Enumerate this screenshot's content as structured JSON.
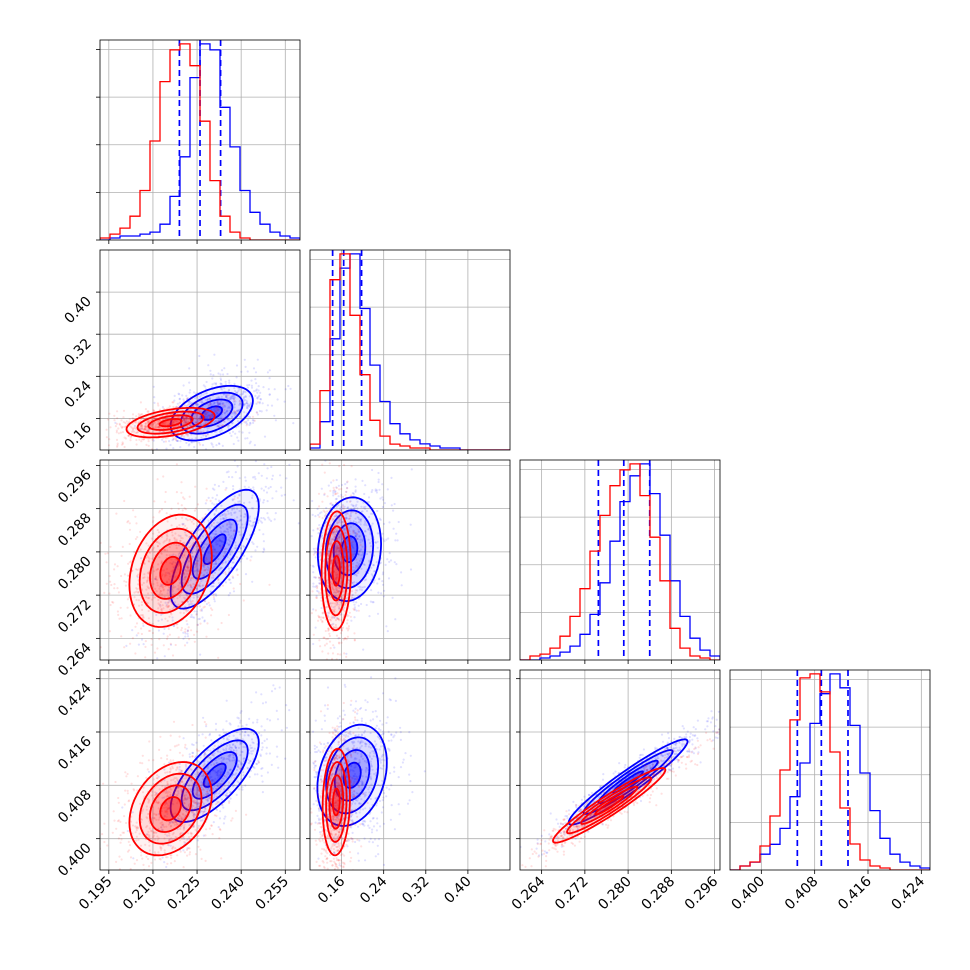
{
  "chart_data": {
    "type": "corner",
    "title": "",
    "parameters": [
      {
        "range": [
          0.192,
          0.26
        ],
        "ticks": [
          0.195,
          0.21,
          0.225,
          0.24,
          0.255
        ],
        "tick_labels": [
          "0.195",
          "0.210",
          "0.225",
          "0.240",
          "0.255"
        ]
      },
      {
        "range": [
          0.1,
          0.48
        ],
        "ticks": [
          0.16,
          0.24,
          0.32,
          0.4
        ],
        "tick_labels": [
          "0.16",
          "0.24",
          "0.32",
          "0.40"
        ]
      },
      {
        "range": [
          0.26,
          0.297
        ],
        "ticks": [
          0.264,
          0.272,
          0.28,
          0.288,
          0.296
        ],
        "tick_labels": [
          "0.264",
          "0.272",
          "0.280",
          "0.288",
          "0.296"
        ]
      },
      {
        "range": [
          0.3953,
          0.4253
        ],
        "ticks": [
          0.4,
          0.408,
          0.416,
          0.424
        ],
        "tick_labels": [
          "0.400",
          "0.408",
          "0.416",
          "0.424"
        ]
      }
    ],
    "series": [
      {
        "color": "#0000ff",
        "quantiles": [
          [
            0.219,
            0.226,
            0.233
          ],
          [
            0.143,
            0.164,
            0.198
          ],
          [
            0.2745,
            0.2792,
            0.284
          ],
          [
            0.4054,
            0.409,
            0.413
          ]
        ],
        "histograms": [
          [
            0,
            1,
            2,
            2,
            3,
            4,
            8,
            22,
            42,
            82,
            99,
            96,
            67,
            47,
            25,
            14,
            8,
            4,
            2,
            1
          ],
          [
            1,
            14,
            55,
            90,
            97,
            70,
            42,
            24,
            13,
            8,
            5,
            3,
            2,
            1,
            1,
            0,
            0,
            0,
            0,
            0
          ],
          [
            0,
            0,
            1,
            2,
            4,
            7,
            13,
            23,
            39,
            60,
            80,
            93,
            99,
            84,
            63,
            40,
            22,
            11,
            5,
            2
          ],
          [
            0,
            2,
            4,
            8,
            13,
            21,
            37,
            54,
            74,
            89,
            99,
            92,
            73,
            49,
            30,
            16,
            8,
            4,
            2,
            1
          ]
        ],
        "contours": [
          {
            "i": 0,
            "j": 1,
            "mean": [
              0.23,
              0.17
            ],
            "sd": [
              0.007,
              0.026
            ],
            "rho": 0.45
          },
          {
            "i": 0,
            "j": 2,
            "mean": [
              0.231,
              0.2805
            ],
            "sd": [
              0.0075,
              0.0055
            ],
            "rho": 0.72
          },
          {
            "i": 1,
            "j": 2,
            "mean": [
              0.175,
              0.2805
            ],
            "sd": [
              0.03,
              0.0048
            ],
            "rho": 0.1
          },
          {
            "i": 0,
            "j": 3,
            "mean": [
              0.231,
              0.4095
            ],
            "sd": [
              0.0075,
              0.0035
            ],
            "rho": 0.7
          },
          {
            "i": 1,
            "j": 3,
            "mean": [
              0.18,
              0.4095
            ],
            "sd": [
              0.033,
              0.0038
            ],
            "rho": 0.25
          },
          {
            "i": 2,
            "j": 3,
            "mean": [
              0.28,
              0.4085
            ],
            "sd": [
              0.0055,
              0.0032
            ],
            "rho": 0.95
          }
        ]
      },
      {
        "color": "#ff0000",
        "quantiles": [
          null,
          null,
          null,
          null
        ],
        "histograms": [
          [
            1,
            3,
            6,
            12,
            25,
            50,
            80,
            96,
            99,
            88,
            60,
            30,
            12,
            4,
            1,
            0,
            0,
            0,
            0,
            0
          ],
          [
            3,
            30,
            86,
            99,
            68,
            38,
            15,
            7,
            3,
            2,
            1,
            1,
            0,
            0,
            0,
            0,
            0,
            0,
            0,
            0
          ],
          [
            0,
            2,
            3,
            6,
            12,
            22,
            36,
            55,
            73,
            88,
            96,
            99,
            83,
            62,
            40,
            16,
            6,
            2,
            1,
            0
          ],
          [
            0,
            2,
            4,
            12,
            27,
            50,
            75,
            96,
            98,
            89,
            59,
            31,
            13,
            5,
            2,
            1,
            0,
            0,
            0,
            0
          ]
        ],
        "contours": [
          {
            "i": 0,
            "j": 1,
            "mean": [
              0.216,
              0.152
            ],
            "sd": [
              0.0075,
              0.014
            ],
            "rho": 0.45
          },
          {
            "i": 0,
            "j": 2,
            "mean": [
              0.216,
              0.2765
            ],
            "sd": [
              0.007,
              0.0052
            ],
            "rho": 0.25
          },
          {
            "i": 1,
            "j": 2,
            "mean": [
              0.15,
              0.2765
            ],
            "sd": [
              0.014,
              0.0055
            ],
            "rho": 0.05
          },
          {
            "i": 0,
            "j": 3,
            "mean": [
              0.216,
              0.4045
            ],
            "sd": [
              0.007,
              0.0035
            ],
            "rho": 0.3
          },
          {
            "i": 1,
            "j": 3,
            "mean": [
              0.15,
              0.4055
            ],
            "sd": [
              0.013,
              0.004
            ],
            "rho": 0.1
          },
          {
            "i": 2,
            "j": 3,
            "mean": [
              0.2765,
              0.405
            ],
            "sd": [
              0.0052,
              0.0028
            ],
            "rho": 0.95
          }
        ]
      }
    ],
    "grid": true,
    "legend": "none"
  }
}
